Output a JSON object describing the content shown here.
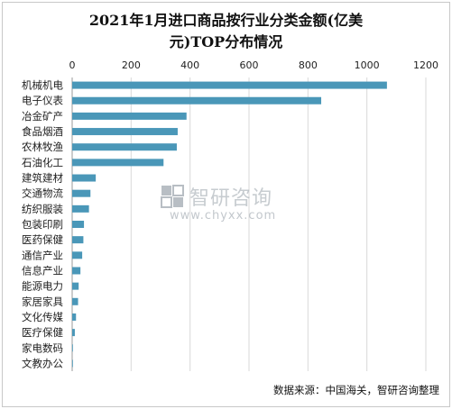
{
  "chart_data": {
    "type": "bar",
    "orientation": "horizontal",
    "title_line1": "2021年1月进口商品按行业分类金额(亿美",
    "title_line2": "元)TOP分布情况",
    "categories": [
      "机械机电",
      "电子仪表",
      "冶金矿产",
      "食品烟酒",
      "农林牧渔",
      "石油化工",
      "建筑建材",
      "交通物流",
      "纺织服装",
      "包装印刷",
      "医药保健",
      "通信产业",
      "信息产业",
      "能源电力",
      "家居家具",
      "文化传媒",
      "医疗保健",
      "家电数码",
      "文教办公"
    ],
    "values": [
      1068,
      845,
      388,
      358,
      355,
      310,
      80,
      62,
      57,
      40,
      38,
      34,
      28,
      22,
      20,
      13,
      9,
      2,
      1
    ],
    "x_ticks": [
      "0",
      "200",
      "400",
      "600",
      "800",
      "1000",
      "1200"
    ],
    "xlim": [
      0,
      1200
    ],
    "grid": true,
    "axis_position": "top",
    "bar_color": "#4a97b8"
  },
  "watermark": {
    "name": "智研咨询",
    "url": "www.chyxx.com"
  },
  "source": "数据来源：中国海关，智研咨询整理"
}
